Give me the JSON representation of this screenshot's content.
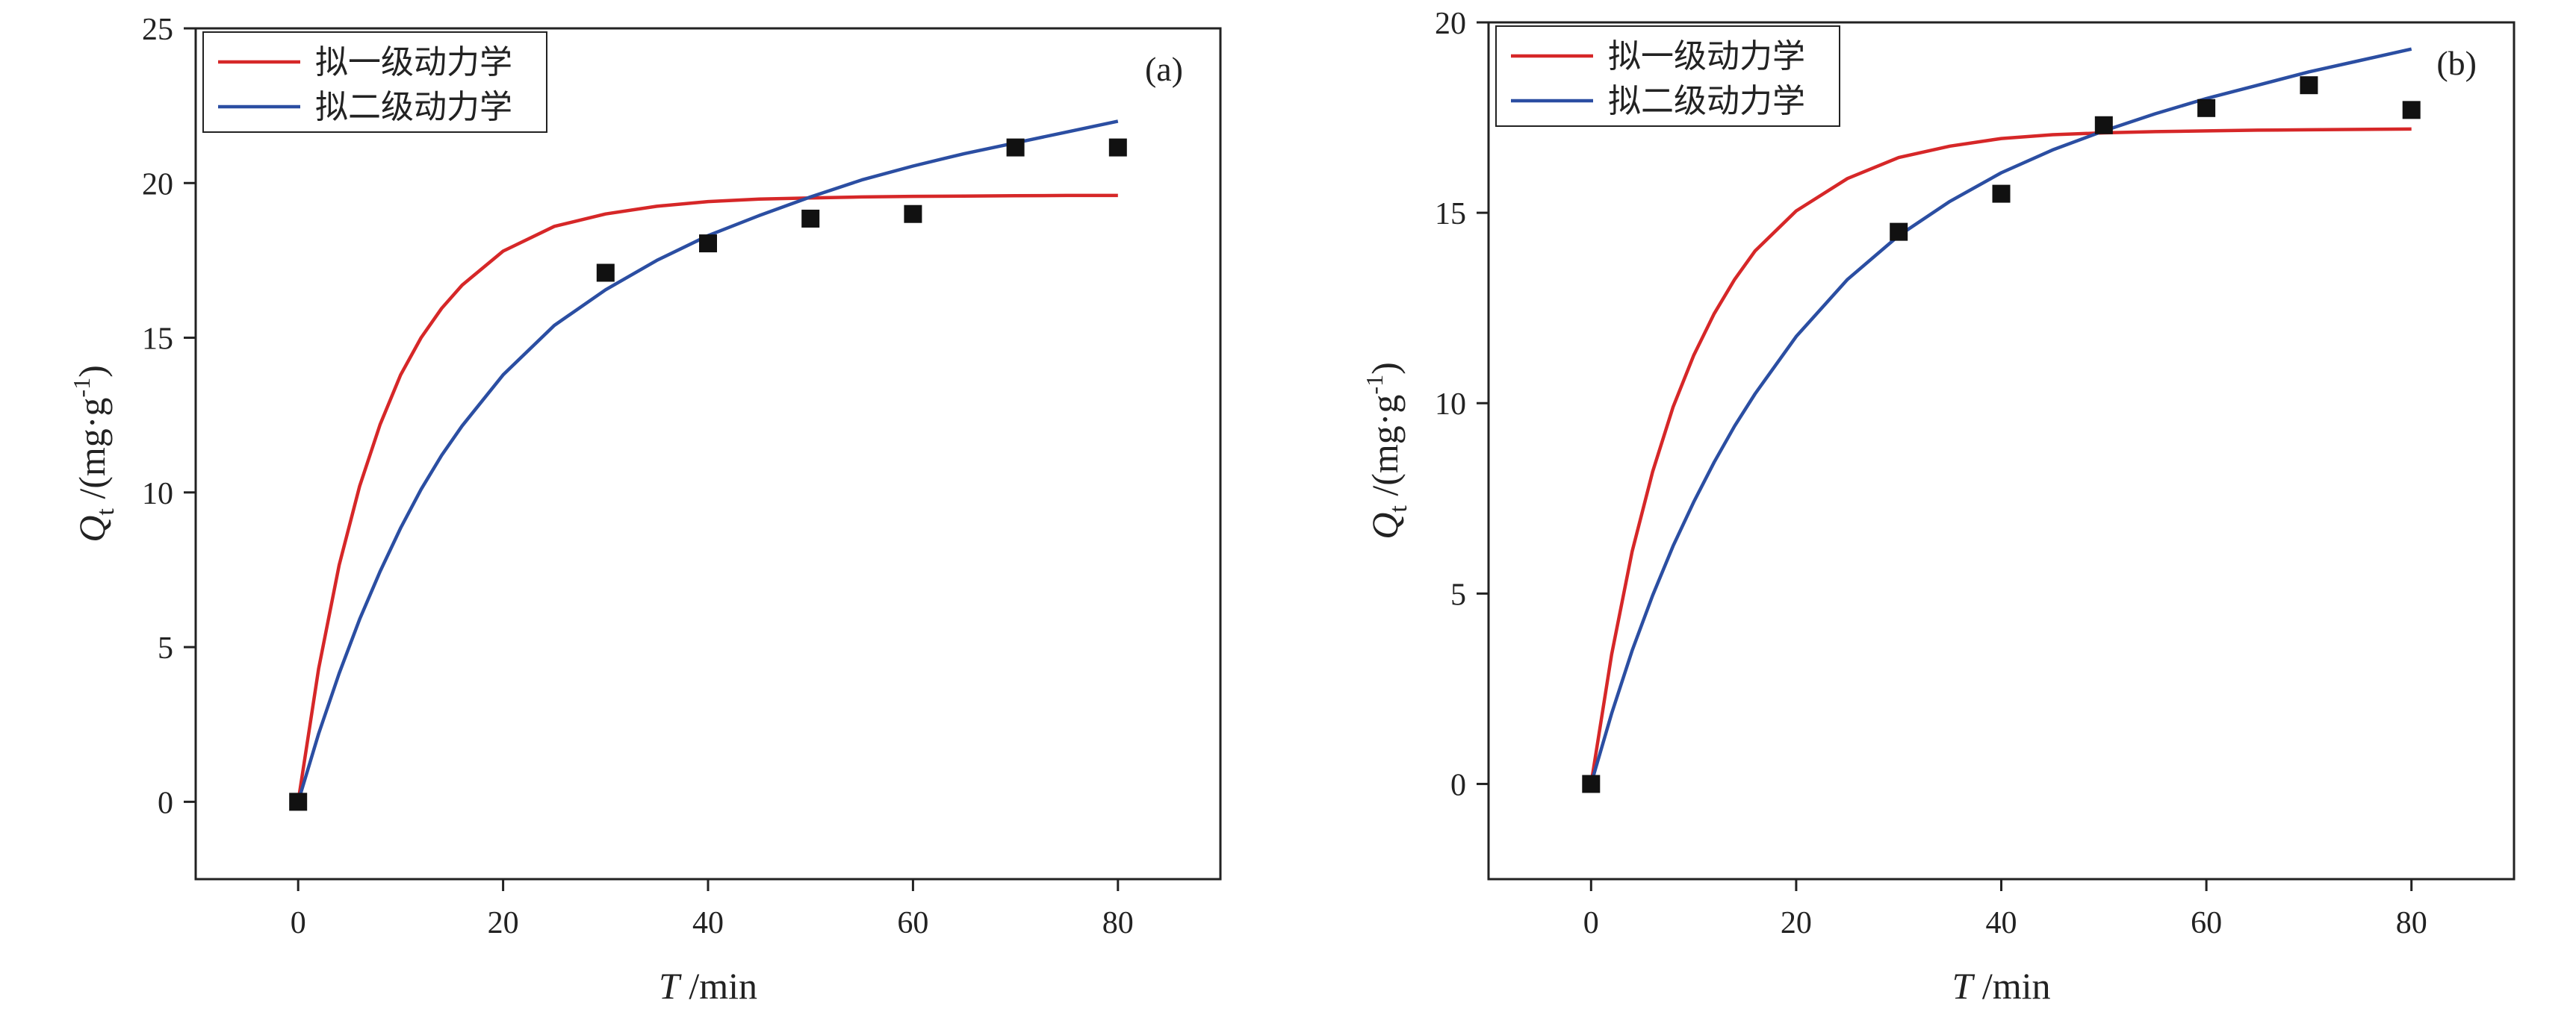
{
  "chart_data": [
    {
      "type": "scatter",
      "panel_label": "(a)",
      "xlabel": {
        "var": "T",
        "unit": " /min"
      },
      "ylabel": {
        "var": "Q",
        "sub": "t",
        "unit_pre": " /(mg·g",
        "sup": "-1",
        "unit_post": ")"
      },
      "xlim": [
        -10,
        90
      ],
      "ylim": [
        -2.5,
        25
      ],
      "xticks": [
        0,
        20,
        40,
        60,
        80
      ],
      "yticks": [
        0,
        5,
        10,
        15,
        20,
        25
      ],
      "grid": false,
      "legend_position": "top-left",
      "points": {
        "x": [
          0,
          30,
          40,
          50,
          60,
          70,
          80
        ],
        "y": [
          0,
          17.1,
          18.05,
          18.85,
          19.0,
          21.15,
          21.15
        ],
        "color": "#111111"
      },
      "series": [
        {
          "name": "拟一级动力学",
          "color": "#d62728",
          "x": [
            0,
            2,
            4,
            6,
            8,
            10,
            12,
            14,
            16,
            20,
            25,
            30,
            35,
            40,
            45,
            50,
            55,
            60,
            65,
            70,
            75,
            80
          ],
          "y": [
            0,
            4.3,
            7.65,
            10.2,
            12.2,
            13.8,
            15.0,
            15.95,
            16.7,
            17.8,
            18.6,
            19.0,
            19.25,
            19.4,
            19.48,
            19.52,
            19.55,
            19.57,
            19.58,
            19.59,
            19.6,
            19.6
          ]
        },
        {
          "name": "拟二级动力学",
          "color": "#2b4ea2",
          "x": [
            0,
            2,
            4,
            6,
            8,
            10,
            12,
            14,
            16,
            20,
            25,
            30,
            35,
            40,
            45,
            50,
            55,
            60,
            65,
            70,
            75,
            80
          ],
          "y": [
            0,
            2.2,
            4.15,
            5.9,
            7.45,
            8.85,
            10.1,
            11.2,
            12.15,
            13.8,
            15.4,
            16.55,
            17.5,
            18.3,
            18.95,
            19.55,
            20.1,
            20.55,
            20.95,
            21.3,
            21.65,
            22.0
          ]
        }
      ]
    },
    {
      "type": "scatter",
      "panel_label": "(b)",
      "xlabel": {
        "var": "T",
        "unit": " /min"
      },
      "ylabel": {
        "var": "Q",
        "sub": "t",
        "unit_pre": " /(mg·g",
        "sup": "-1",
        "unit_post": ")"
      },
      "xlim": [
        -10,
        90
      ],
      "ylim": [
        -2.5,
        20
      ],
      "xticks": [
        0,
        20,
        40,
        60,
        80
      ],
      "yticks": [
        0,
        5,
        10,
        15,
        20
      ],
      "grid": false,
      "legend_position": "top-left",
      "points": {
        "x": [
          0,
          30,
          40,
          50,
          60,
          70,
          80
        ],
        "y": [
          0,
          14.5,
          15.5,
          17.3,
          17.75,
          18.35,
          17.7
        ],
        "color": "#111111"
      },
      "series": [
        {
          "name": "拟一级动力学",
          "color": "#d62728",
          "x": [
            0,
            2,
            4,
            6,
            8,
            10,
            12,
            14,
            16,
            20,
            25,
            30,
            35,
            40,
            45,
            50,
            55,
            60,
            65,
            70,
            75,
            80
          ],
          "y": [
            0,
            3.4,
            6.1,
            8.2,
            9.9,
            11.25,
            12.35,
            13.25,
            14.0,
            15.05,
            15.9,
            16.45,
            16.75,
            16.95,
            17.05,
            17.1,
            17.13,
            17.15,
            17.17,
            17.18,
            17.19,
            17.2
          ]
        },
        {
          "name": "拟二级动力学",
          "color": "#2b4ea2",
          "x": [
            0,
            2,
            4,
            6,
            8,
            10,
            12,
            14,
            16,
            20,
            25,
            30,
            35,
            40,
            45,
            50,
            55,
            60,
            65,
            70,
            75,
            80
          ],
          "y": [
            0,
            1.85,
            3.5,
            4.95,
            6.25,
            7.4,
            8.45,
            9.4,
            10.25,
            11.75,
            13.25,
            14.4,
            15.3,
            16.05,
            16.65,
            17.15,
            17.6,
            18.0,
            18.35,
            18.7,
            19.0,
            19.3
          ]
        }
      ]
    }
  ]
}
